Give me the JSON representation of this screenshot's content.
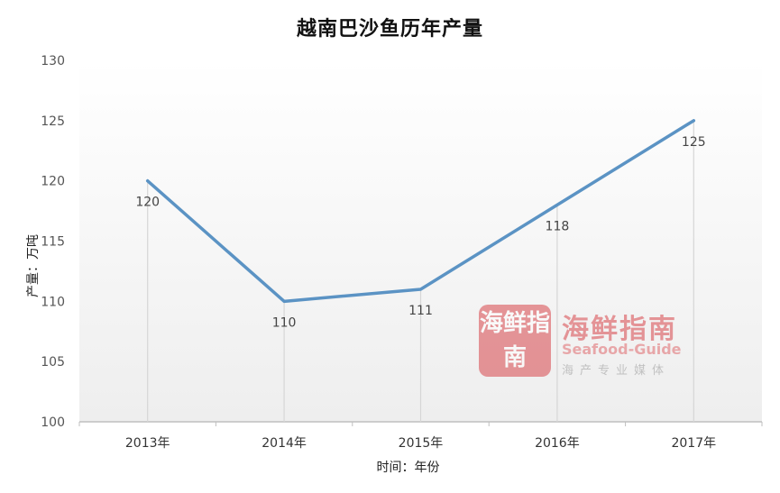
{
  "chart_data": {
    "type": "line",
    "title": "越南巴沙鱼历年产量",
    "xlabel": "时间：年份",
    "ylabel": "产量：万吨",
    "categories": [
      "2013年",
      "2014年",
      "2015年",
      "2016年",
      "2017年"
    ],
    "series": [
      {
        "values": [
          120,
          110,
          111,
          118,
          125
        ],
        "color": "#5b93c4"
      }
    ],
    "data_labels": [
      "120",
      "110",
      "111",
      "118",
      "125"
    ],
    "ylim": [
      100,
      130
    ],
    "yticks": [
      "100",
      "105",
      "110",
      "115",
      "120",
      "125",
      "130"
    ],
    "grid": false,
    "drop_lines": true
  },
  "watermark": {
    "logo_text": "海鲜指南",
    "name": "海鲜指南",
    "subtitle": "Seafood-Guide",
    "tagline": "海产专业媒体"
  }
}
